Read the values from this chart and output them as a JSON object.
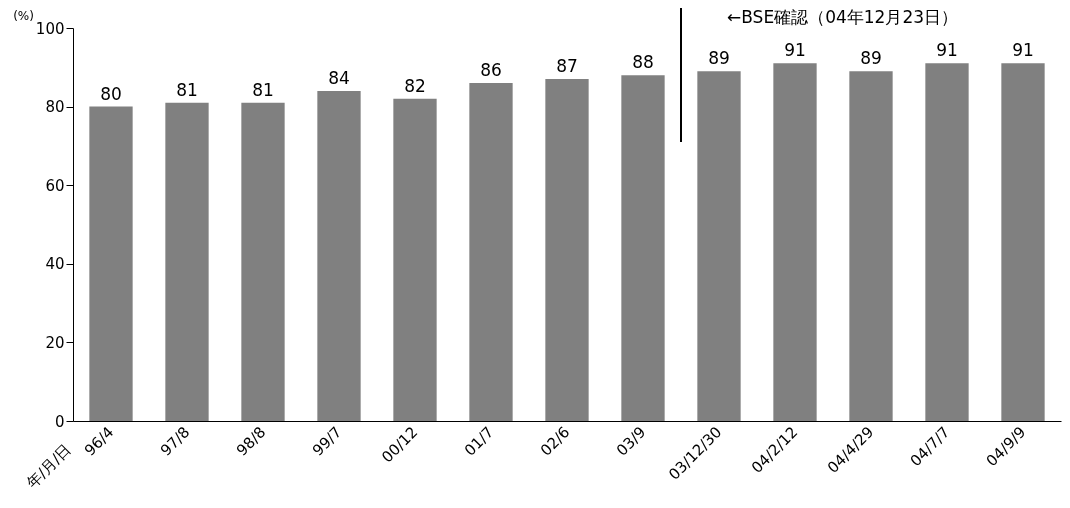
{
  "chart_data": {
    "type": "bar",
    "xlabel": "年/月/日",
    "ylabel": "(%)",
    "categories": [
      "96/4",
      "97/8",
      "98/8",
      "99/7",
      "00/12",
      "01/7",
      "02/6",
      "03/9",
      "03/12/30",
      "04/2/12",
      "04/4/29",
      "04/7/7",
      "04/9/9"
    ],
    "values": [
      80,
      81,
      81,
      84,
      82,
      86,
      87,
      88,
      89,
      91,
      89,
      91,
      91
    ],
    "color": "#808080",
    "ylim": [
      0,
      100
    ],
    "yticks": [
      0,
      20,
      40,
      60,
      80,
      100
    ],
    "grid": false,
    "data_labels": true,
    "annotations": [
      "←BSE確認（04年12月23日）"
    ]
  }
}
